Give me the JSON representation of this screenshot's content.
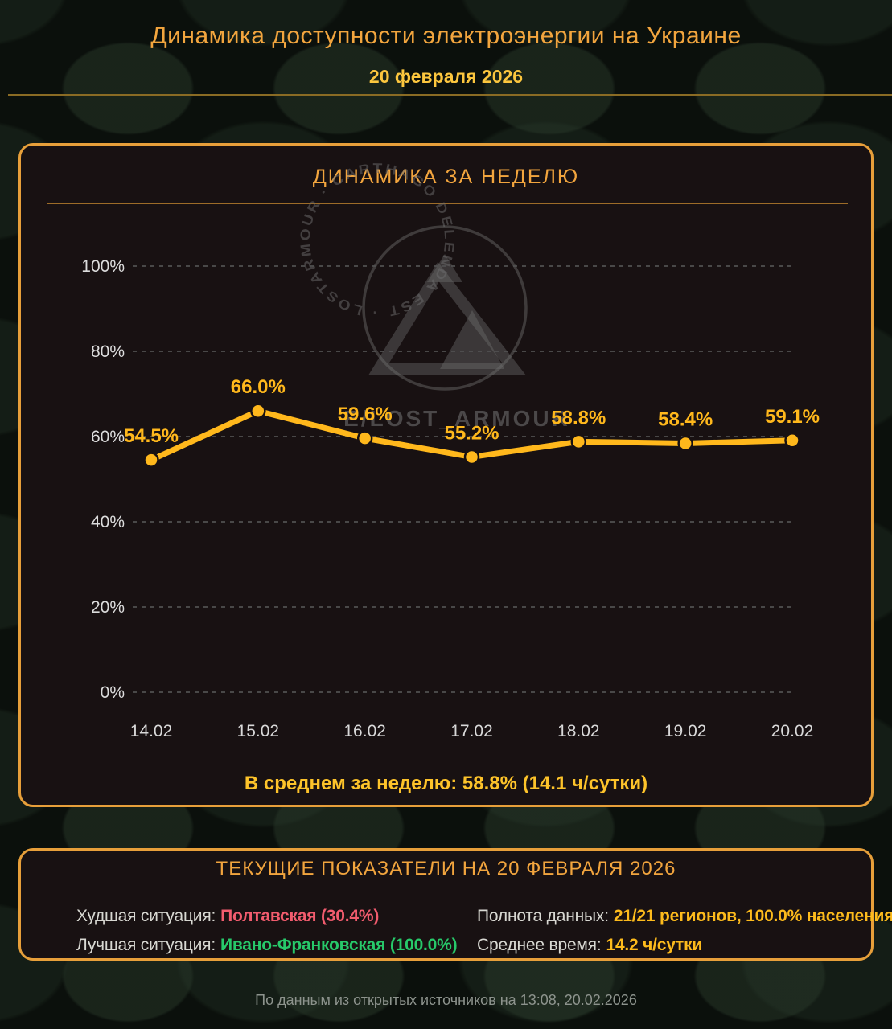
{
  "page": {
    "title": "Динамика доступности электроэнергии на Украине",
    "date": "20 февраля 2026",
    "footer": "По данным из открытых источников на 13:08, 20.02.2026"
  },
  "colors": {
    "accent_orange": "#f2a53e",
    "line_gold": "#ffb81c",
    "value_yellow": "#fdbb1c",
    "worst_red": "#f25c6e",
    "best_green": "#27c96a",
    "panel_border": "#e79f3a"
  },
  "chart_data": {
    "type": "line",
    "title": "ДИНАМИКА ЗА НЕДЕЛЮ",
    "x": [
      "14.02",
      "15.02",
      "16.02",
      "17.02",
      "18.02",
      "19.02",
      "20.02"
    ],
    "values": [
      54.5,
      66.0,
      59.6,
      55.2,
      58.8,
      58.4,
      59.1
    ],
    "point_labels": [
      "54.5%",
      "66.0%",
      "59.6%",
      "55.2%",
      "58.8%",
      "58.4%",
      "59.1%"
    ],
    "ytick_values": [
      0,
      20,
      40,
      60,
      80,
      100
    ],
    "ytick_labels": [
      "0%",
      "20%",
      "40%",
      "60%",
      "80%",
      "100%"
    ],
    "ylim": [
      0,
      100
    ],
    "grid": "dashed-horizontal",
    "legend": "none",
    "summary": "В среднем за неделю: 58.8% (14.1 ч/сутки)"
  },
  "watermark": {
    "circle_text": "· LOSTARMOUR · CARTHAGO DELENDA EST",
    "handle": "E/LOST_ARMOUR"
  },
  "current": {
    "title": "ТЕКУЩИЕ ПОКАЗАТЕЛИ НА 20 ФЕВРАЛЯ 2026",
    "worst_label": "Худшая ситуация:",
    "worst_value": "Полтавская (30.4%)",
    "best_label": "Лучшая ситуация:",
    "best_value": "Ивано-Франковская (100.0%)",
    "completeness_label": "Полнота данных:",
    "completeness_value": "21/21 регионов, 100.0% населения",
    "avgtime_label": "Среднее время:",
    "avgtime_value": "14.2 ч/сутки"
  }
}
